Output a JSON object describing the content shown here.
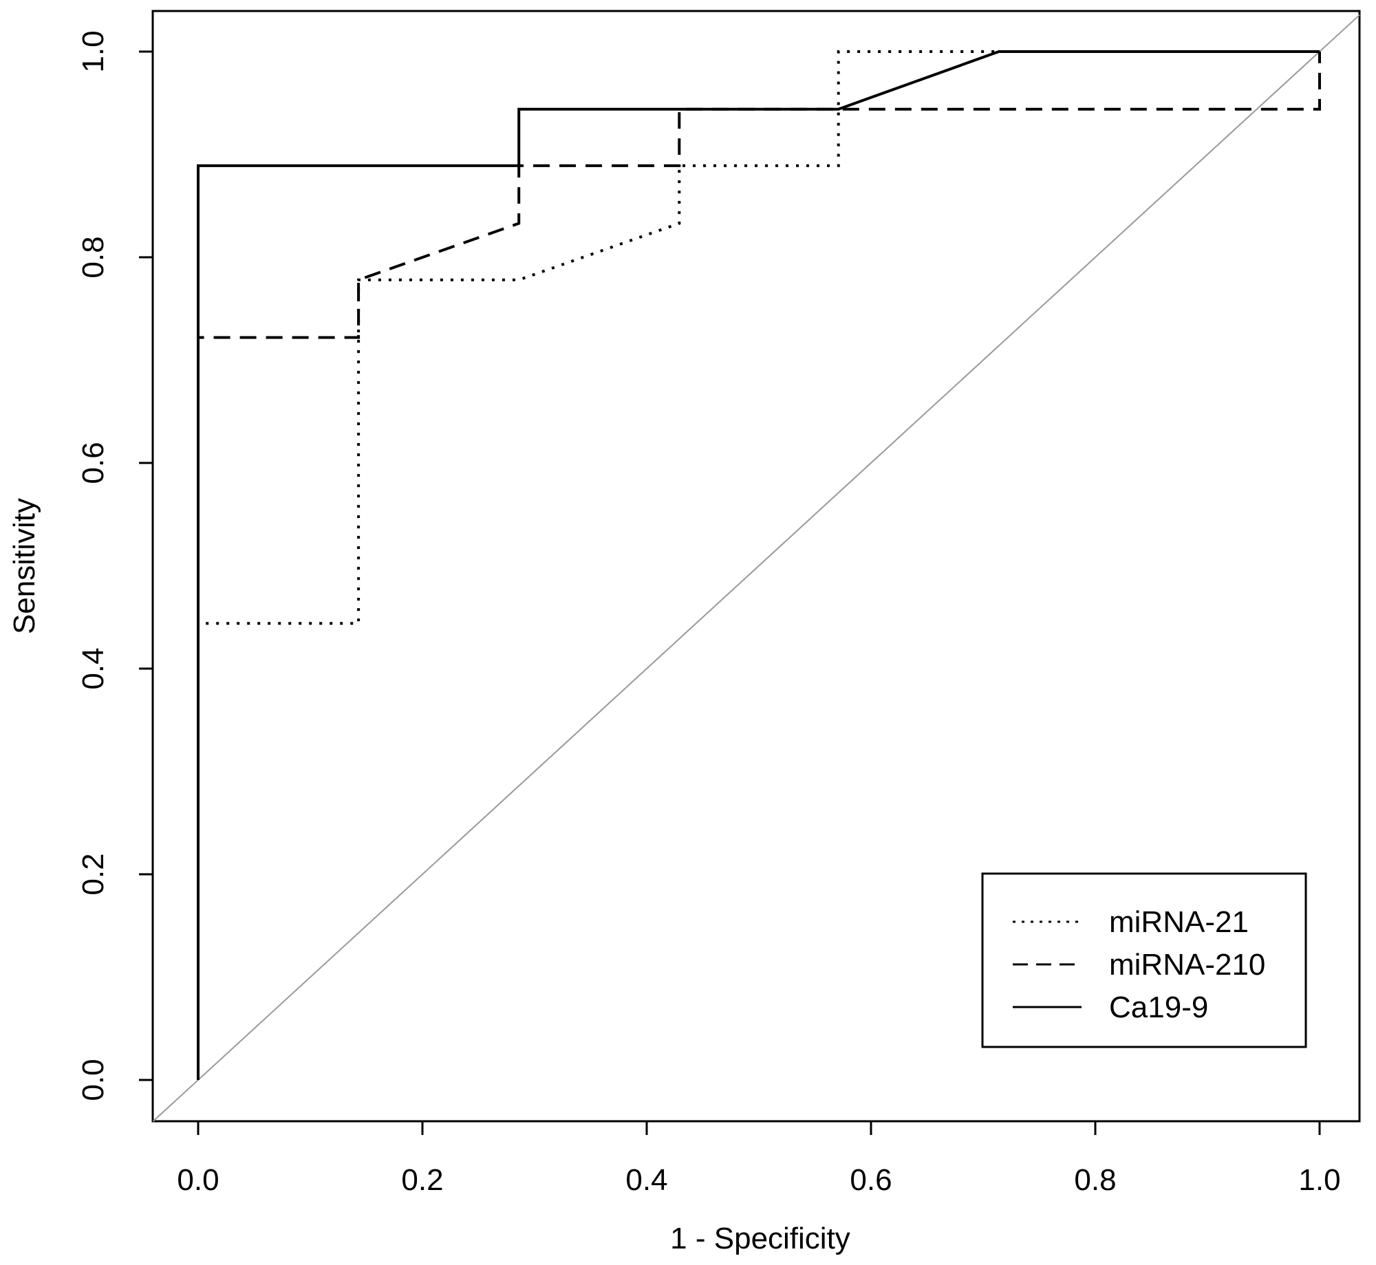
{
  "chart_data": {
    "type": "line",
    "title": "",
    "xlabel": "1 - Specificity",
    "ylabel": "Sensitivity",
    "xlim": [
      0,
      1
    ],
    "ylim": [
      0,
      1
    ],
    "x_ticks": [
      "0.0",
      "0.2",
      "0.4",
      "0.6",
      "0.8",
      "1.0"
    ],
    "y_ticks": [
      "0.0",
      "0.2",
      "0.4",
      "0.6",
      "0.8",
      "1.0"
    ],
    "grid": false,
    "legend_position": "bottom-right",
    "reference_line": {
      "points": [
        [
          0,
          0
        ],
        [
          1,
          1
        ]
      ],
      "color": "#999999"
    },
    "series": [
      {
        "name": "miRNA-21",
        "line_style": "dotted",
        "color": "#000000",
        "points": [
          [
            0,
            0
          ],
          [
            0,
            0.444
          ],
          [
            0.143,
            0.444
          ],
          [
            0.143,
            0.778
          ],
          [
            0.286,
            0.778
          ],
          [
            0.429,
            0.833
          ],
          [
            0.429,
            0.889
          ],
          [
            0.571,
            0.889
          ],
          [
            0.571,
            1.0
          ],
          [
            1.0,
            1.0
          ]
        ]
      },
      {
        "name": "miRNA-210",
        "line_style": "dashed",
        "color": "#000000",
        "points": [
          [
            0,
            0
          ],
          [
            0,
            0.722
          ],
          [
            0.143,
            0.722
          ],
          [
            0.143,
            0.778
          ],
          [
            0.286,
            0.833
          ],
          [
            0.286,
            0.889
          ],
          [
            0.429,
            0.889
          ],
          [
            0.429,
            0.944
          ],
          [
            1.0,
            0.944
          ],
          [
            1.0,
            1.0
          ]
        ]
      },
      {
        "name": "Ca19-9",
        "line_style": "solid",
        "color": "#000000",
        "points": [
          [
            0,
            0
          ],
          [
            0,
            0.889
          ],
          [
            0.286,
            0.889
          ],
          [
            0.286,
            0.944
          ],
          [
            0.571,
            0.944
          ],
          [
            0.714,
            1.0
          ],
          [
            1.0,
            1.0
          ]
        ]
      }
    ]
  }
}
